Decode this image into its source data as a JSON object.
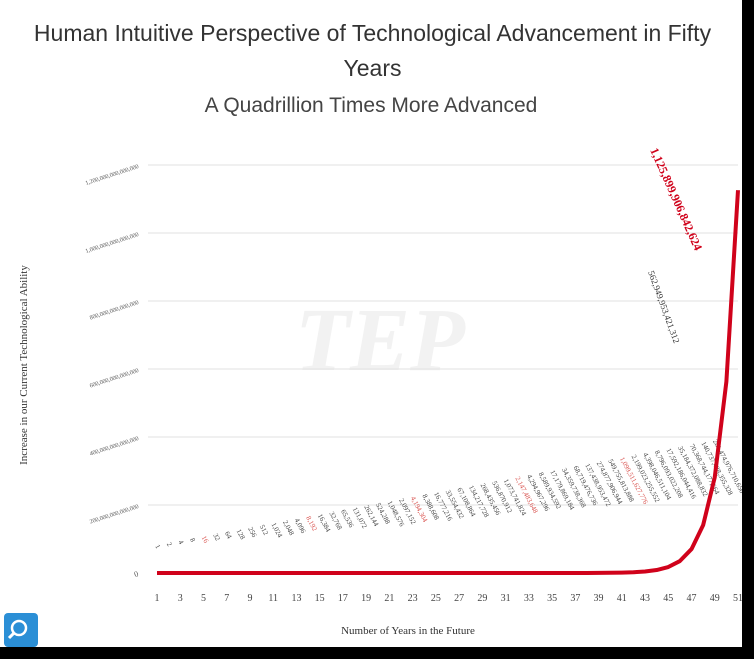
{
  "chart_data": {
    "type": "line",
    "title": "Human Intuitive Perspective of Technological Advancement in Fifty Years",
    "subtitle": "A Quadrillion Times More Advanced",
    "x_label": "Number of Years in the Future",
    "y_label": "Increase in our Current Technological Ability",
    "x": [
      1,
      2,
      3,
      4,
      5,
      6,
      7,
      8,
      9,
      10,
      11,
      12,
      13,
      14,
      15,
      16,
      17,
      18,
      19,
      20,
      21,
      22,
      23,
      24,
      25,
      26,
      27,
      28,
      29,
      30,
      31,
      32,
      33,
      34,
      35,
      36,
      37,
      38,
      39,
      40,
      41,
      42,
      43,
      44,
      45,
      46,
      47,
      48,
      49,
      50,
      51
    ],
    "series": [
      {
        "color": "#d0021b",
        "values": [
          1,
          2,
          4,
          8,
          16,
          32,
          64,
          128,
          256,
          512,
          1024,
          2048,
          4096,
          8192,
          16384,
          32768,
          65536,
          131072,
          262144,
          524288,
          1048576,
          2097152,
          4194304,
          8388608,
          16777216,
          33554432,
          67108864,
          134217728,
          268435456,
          536870912,
          1073741824,
          2147483648,
          4294967296,
          8589934592,
          17179869184,
          34359738368,
          68719476736,
          137438953472,
          274877906944,
          549755813888,
          1099511627776,
          2199023255552,
          4398046511104,
          8796093022208,
          17592186044416,
          35184372088832,
          70368744177664,
          140737488355328,
          281474976710656,
          562949953421312,
          1125899906842624
        ],
        "value_labels": [
          "1",
          "2",
          "4",
          "8",
          "16",
          "32",
          "64",
          "128",
          "256",
          "512",
          "1,024",
          "2,048",
          "4,096",
          "8,192",
          "16,384",
          "32,768",
          "65,536",
          "131,072",
          "262,144",
          "524,288",
          "1,048,576",
          "2,097,152",
          "4,194,304",
          "8,388,608",
          "16,777,216",
          "33,554,432",
          "67,108,864",
          "134,217,728",
          "268,435,456",
          "536,870,912",
          "1,073,741,824",
          "2,147,483,648",
          "4,294,967,296",
          "8,589,934,592",
          "17,179,869,184",
          "34,359,738,368",
          "68,719,476,736",
          "137,438,953,472",
          "274,877,906,944",
          "549,755,813,888",
          "1,099,511,627,776",
          "2,199,023,255,552",
          "4,398,046,511,104",
          "8,796,093,022,208",
          "17,592,186,044,416",
          "35,184,372,088,832",
          "70,368,744,177,664",
          "140,737,488,355,328",
          "281,474,976,710,656",
          "562,949,953,421,312",
          "1,125,899,906,842,624"
        ]
      }
    ],
    "xlim": [
      1,
      51
    ],
    "xticks": [
      1,
      3,
      5,
      7,
      9,
      11,
      13,
      15,
      17,
      19,
      21,
      23,
      25,
      27,
      29,
      31,
      33,
      35,
      37,
      39,
      41,
      43,
      45,
      47,
      49,
      51
    ],
    "ylim": [
      0,
      1200000000000000
    ],
    "yticks": [
      0,
      {
        "value": 200000000000000,
        "label": "200,000,000,000,000"
      },
      {
        "value": 400000000000000,
        "label": "400,000,000,000,000"
      },
      {
        "value": 600000000000000,
        "label": "600,000,000,000,000"
      },
      {
        "value": 800000000000000,
        "label": "800,000,000,000,000"
      },
      {
        "value": 1000000000000000,
        "label": "1,000,000,000,000,000"
      },
      {
        "value": 1200000000000000,
        "label": "1,200,000,000,000,000"
      }
    ],
    "grid": true
  }
}
